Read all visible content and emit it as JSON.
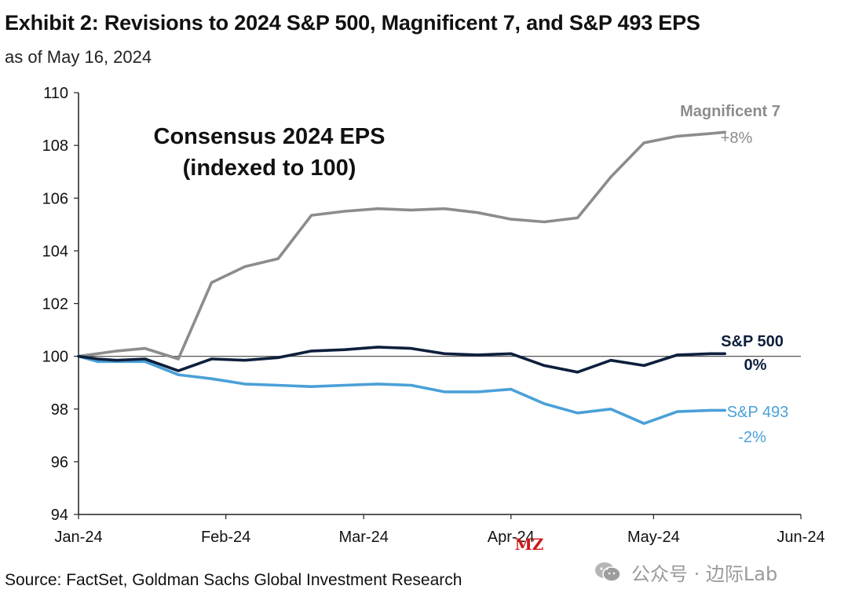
{
  "header": {
    "title": "Exhibit 2: Revisions to 2024 S&P 500, Magnificent 7, and S&P 493 EPS",
    "subtitle": "as of May 16, 2024"
  },
  "footer": {
    "source": "Source: FactSet, Goldman Sachs Global Investment Research",
    "watermark_text": "公众号 · 边际Lab",
    "watermark_icon": "wechat-icon",
    "overlay_mark": "MZ"
  },
  "colors": {
    "magnificent7": "#8c8c8c",
    "sp500": "#0d1f3c",
    "sp493": "#4aa0d8",
    "axis": "#222222",
    "baseline": "#555555",
    "overlay_mark": "#cc1a1a"
  },
  "chart_data": {
    "type": "line",
    "title": "Consensus 2024 EPS",
    "subtitle": "(indexed to 100)",
    "xlabel": "",
    "ylabel": "",
    "ylim": [
      94,
      110
    ],
    "yticks": [
      94,
      96,
      98,
      100,
      102,
      104,
      106,
      108,
      110
    ],
    "xlim": [
      0,
      152
    ],
    "xticks": [
      {
        "label": "Jan-24",
        "day": 0
      },
      {
        "label": "Feb-24",
        "day": 31
      },
      {
        "label": "Mar-24",
        "day": 60
      },
      {
        "label": "Apr-24",
        "day": 91
      },
      {
        "label": "May-24",
        "day": 121
      },
      {
        "label": "Jun-24",
        "day": 152
      }
    ],
    "reference_line": 100,
    "grid": false,
    "x_days": [
      0,
      4,
      8,
      14,
      21,
      28,
      35,
      42,
      49,
      56,
      63,
      70,
      77,
      84,
      91,
      98,
      105,
      112,
      119,
      126,
      133,
      136
    ],
    "series": [
      {
        "name": "Magnificent 7",
        "change_label": "+8%",
        "values": [
          100.0,
          100.1,
          100.2,
          100.3,
          99.9,
          102.8,
          103.4,
          103.7,
          105.35,
          105.5,
          105.6,
          105.55,
          105.6,
          105.45,
          105.2,
          105.1,
          105.25,
          106.8,
          108.1,
          108.35,
          108.45,
          108.5
        ]
      },
      {
        "name": "S&P 500",
        "change_label": "0%",
        "values": [
          100.0,
          99.9,
          99.85,
          99.9,
          99.45,
          99.9,
          99.85,
          99.95,
          100.2,
          100.25,
          100.35,
          100.3,
          100.1,
          100.05,
          100.1,
          99.65,
          99.4,
          99.85,
          99.65,
          100.05,
          100.1,
          100.1
        ]
      },
      {
        "name": "S&P 493",
        "change_label": "-2%",
        "values": [
          100.0,
          99.8,
          99.8,
          99.8,
          99.3,
          99.15,
          98.95,
          98.9,
          98.85,
          98.9,
          98.95,
          98.9,
          98.65,
          98.65,
          98.75,
          98.2,
          97.85,
          98.0,
          97.45,
          97.9,
          97.95,
          97.95
        ]
      }
    ]
  }
}
